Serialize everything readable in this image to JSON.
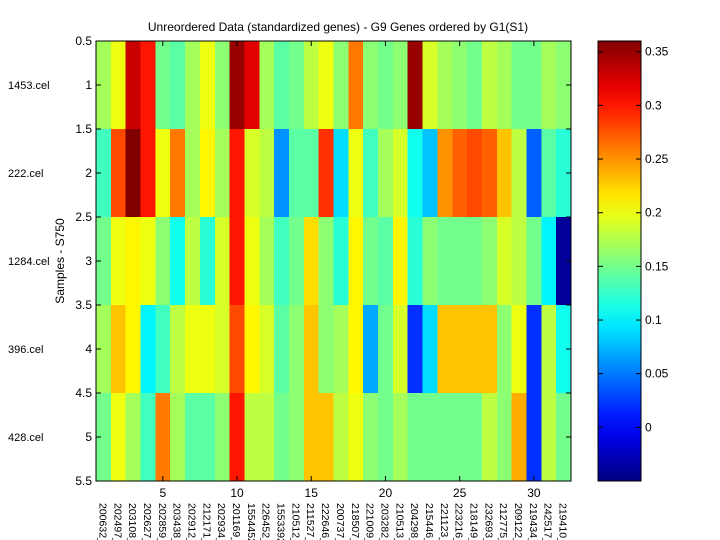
{
  "chart_data": {
    "type": "heatmap",
    "title": "Unreordered Data (standardized genes) - G9 Genes ordered by G1(S1)",
    "ylabel": "Samples - S750",
    "xlabel": "",
    "row_labels": [
      "1453.cel",
      "222.cel",
      "1284.cel",
      "396.cel",
      "428.cel"
    ],
    "col_labels": [
      "200632_",
      "202497_",
      "203108_",
      "202627_",
      "202859_",
      "203438_",
      "202912_",
      "212171_",
      "202934_",
      "201169_",
      "1554452",
      "226452_",
      "1553392",
      "210512_",
      "211527_",
      "222646_",
      "200737_",
      "218507_",
      "221009_",
      "203282_",
      "210513_",
      "204298_",
      "215446_",
      "221123_",
      "223216_",
      "218149_",
      "232693_",
      "212775_",
      "209122_",
      "219434_",
      "242517_",
      "219410_"
    ],
    "xticks": [
      5,
      10,
      15,
      20,
      25,
      30
    ],
    "yticks": [
      0.5,
      1,
      1.5,
      2,
      2.5,
      3,
      3.5,
      4,
      4.5,
      5,
      5.5
    ],
    "xlim": [
      0.5,
      32.5
    ],
    "ylim": [
      0.5,
      5.5
    ],
    "colormap": "jet",
    "clim": [
      -0.05,
      0.36
    ],
    "colorbar_ticks": [
      0,
      0.05,
      0.1,
      0.15,
      0.2,
      0.25,
      0.3,
      0.35
    ],
    "values": [
      [
        0.17,
        0.2,
        0.33,
        0.3,
        0.15,
        0.14,
        0.17,
        0.2,
        0.16,
        0.35,
        0.32,
        0.17,
        0.14,
        0.15,
        0.18,
        0.2,
        0.16,
        0.26,
        0.16,
        0.15,
        0.16,
        0.35,
        0.19,
        0.17,
        0.16,
        0.15,
        0.18,
        0.17,
        0.15,
        0.15,
        0.17,
        0.16
      ],
      [
        0.13,
        0.28,
        0.36,
        0.3,
        0.2,
        0.26,
        0.17,
        0.21,
        0.17,
        0.3,
        0.19,
        0.18,
        0.06,
        0.14,
        0.14,
        0.29,
        0.09,
        0.2,
        0.13,
        0.17,
        0.19,
        0.11,
        0.08,
        0.25,
        0.27,
        0.28,
        0.27,
        0.23,
        0.18,
        0.04,
        0.14,
        0.12
      ],
      [
        0.15,
        0.2,
        0.21,
        0.2,
        0.16,
        0.11,
        0.18,
        0.12,
        0.19,
        0.3,
        0.2,
        0.17,
        0.13,
        0.15,
        0.22,
        0.16,
        0.12,
        0.21,
        0.15,
        0.14,
        0.21,
        0.12,
        0.16,
        0.15,
        0.15,
        0.15,
        0.16,
        0.19,
        0.18,
        0.15,
        0.1,
        -0.04
      ],
      [
        0.17,
        0.23,
        0.21,
        0.1,
        0.13,
        0.18,
        0.2,
        0.2,
        0.19,
        0.28,
        0.21,
        0.19,
        0.14,
        0.16,
        0.23,
        0.16,
        0.17,
        0.21,
        0.07,
        0.15,
        0.19,
        0.02,
        0.09,
        0.23,
        0.23,
        0.23,
        0.23,
        0.16,
        0.2,
        0.02,
        0.18,
        0.11
      ],
      [
        0.15,
        0.2,
        0.17,
        0.13,
        0.26,
        0.17,
        0.14,
        0.14,
        0.16,
        0.3,
        0.18,
        0.18,
        0.15,
        0.16,
        0.23,
        0.23,
        0.18,
        0.2,
        0.16,
        0.15,
        0.17,
        0.15,
        0.15,
        0.15,
        0.15,
        0.15,
        0.18,
        0.16,
        0.24,
        0.02,
        0.18,
        0.15
      ]
    ]
  }
}
